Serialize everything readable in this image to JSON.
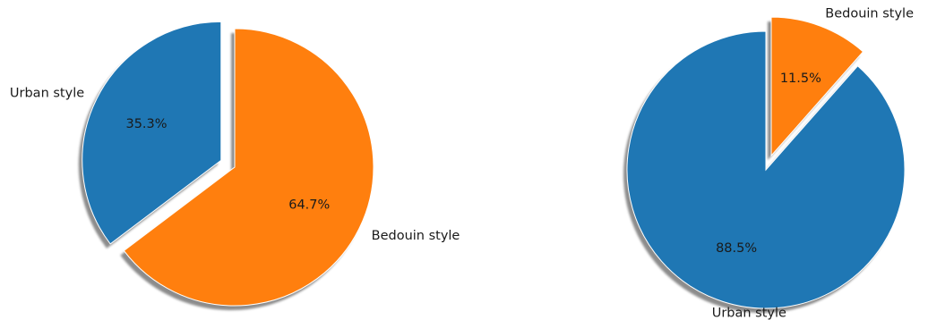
{
  "chart_data": [
    {
      "type": "pie",
      "slices": [
        {
          "label": "Urban style",
          "value": 35.3,
          "pct_label": "35.3%",
          "color": "#1f77b4",
          "exploded": true
        },
        {
          "label": "Bedouin style",
          "value": 64.7,
          "pct_label": "64.7%",
          "color": "#ff7f0e",
          "exploded": false
        }
      ],
      "start_angle_deg": 90,
      "direction": "counterclockwise",
      "shadow": true
    },
    {
      "type": "pie",
      "slices": [
        {
          "label": "Bedouin style",
          "value": 11.5,
          "pct_label": "11.5%",
          "color": "#ff7f0e",
          "exploded": true
        },
        {
          "label": "Urban style",
          "value": 88.5,
          "pct_label": "88.5%",
          "color": "#1f77b4",
          "exploded": false
        }
      ],
      "start_angle_deg": 90,
      "direction": "clockwise",
      "shadow": true
    }
  ]
}
